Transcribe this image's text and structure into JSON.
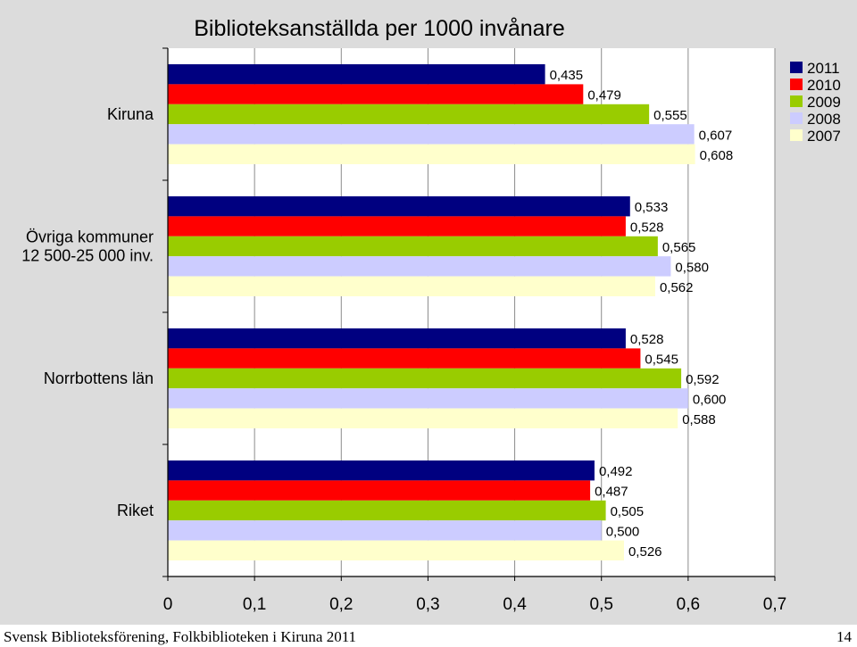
{
  "chart_data": {
    "type": "bar",
    "orientation": "horizontal",
    "title": "Biblioteksanställda per 1000 invånare",
    "categories": [
      "Kiruna",
      "Övriga kommuner 12 500-25 000 inv.",
      "Norrbottens län",
      "Riket"
    ],
    "category_lines": [
      [
        "Kiruna"
      ],
      [
        "Övriga kommuner",
        "12 500-25 000 inv."
      ],
      [
        "Norrbottens län"
      ],
      [
        "Riket"
      ]
    ],
    "series": [
      {
        "name": "2011",
        "color": "#000080",
        "values": [
          0.435,
          0.533,
          0.528,
          0.492
        ],
        "labels": [
          "0,435",
          "0,533",
          "0,528",
          "0,492"
        ]
      },
      {
        "name": "2010",
        "color": "#ff0000",
        "values": [
          0.479,
          0.528,
          0.545,
          0.487
        ],
        "labels": [
          "0,479",
          "0,528",
          "0,545",
          "0,487"
        ]
      },
      {
        "name": "2009",
        "color": "#99cc00",
        "values": [
          0.555,
          0.565,
          0.592,
          0.505
        ],
        "labels": [
          "0,555",
          "0,565",
          "0,592",
          "0,505"
        ]
      },
      {
        "name": "2008",
        "color": "#ccccff",
        "values": [
          0.607,
          0.58,
          0.6,
          0.5
        ],
        "labels": [
          "0,607",
          "0,580",
          "0,600",
          "0,500"
        ]
      },
      {
        "name": "2007",
        "color": "#ffffcc",
        "values": [
          0.608,
          0.562,
          0.588,
          0.526
        ],
        "labels": [
          "0,608",
          "0,562",
          "0,588",
          "0,526"
        ]
      }
    ],
    "xlim": [
      0,
      0.7
    ],
    "xticks": [
      0,
      0.1,
      0.2,
      0.3,
      0.4,
      0.5,
      0.6,
      0.7
    ],
    "xtick_labels": [
      "0",
      "0,1",
      "0,2",
      "0,3",
      "0,4",
      "0,5",
      "0,6",
      "0,7"
    ],
    "grid": true,
    "legend": "top-right"
  },
  "footer": {
    "left": "Svensk Biblioteksförening, Folkbiblioteken i Kiruna 2011",
    "right": "14"
  }
}
